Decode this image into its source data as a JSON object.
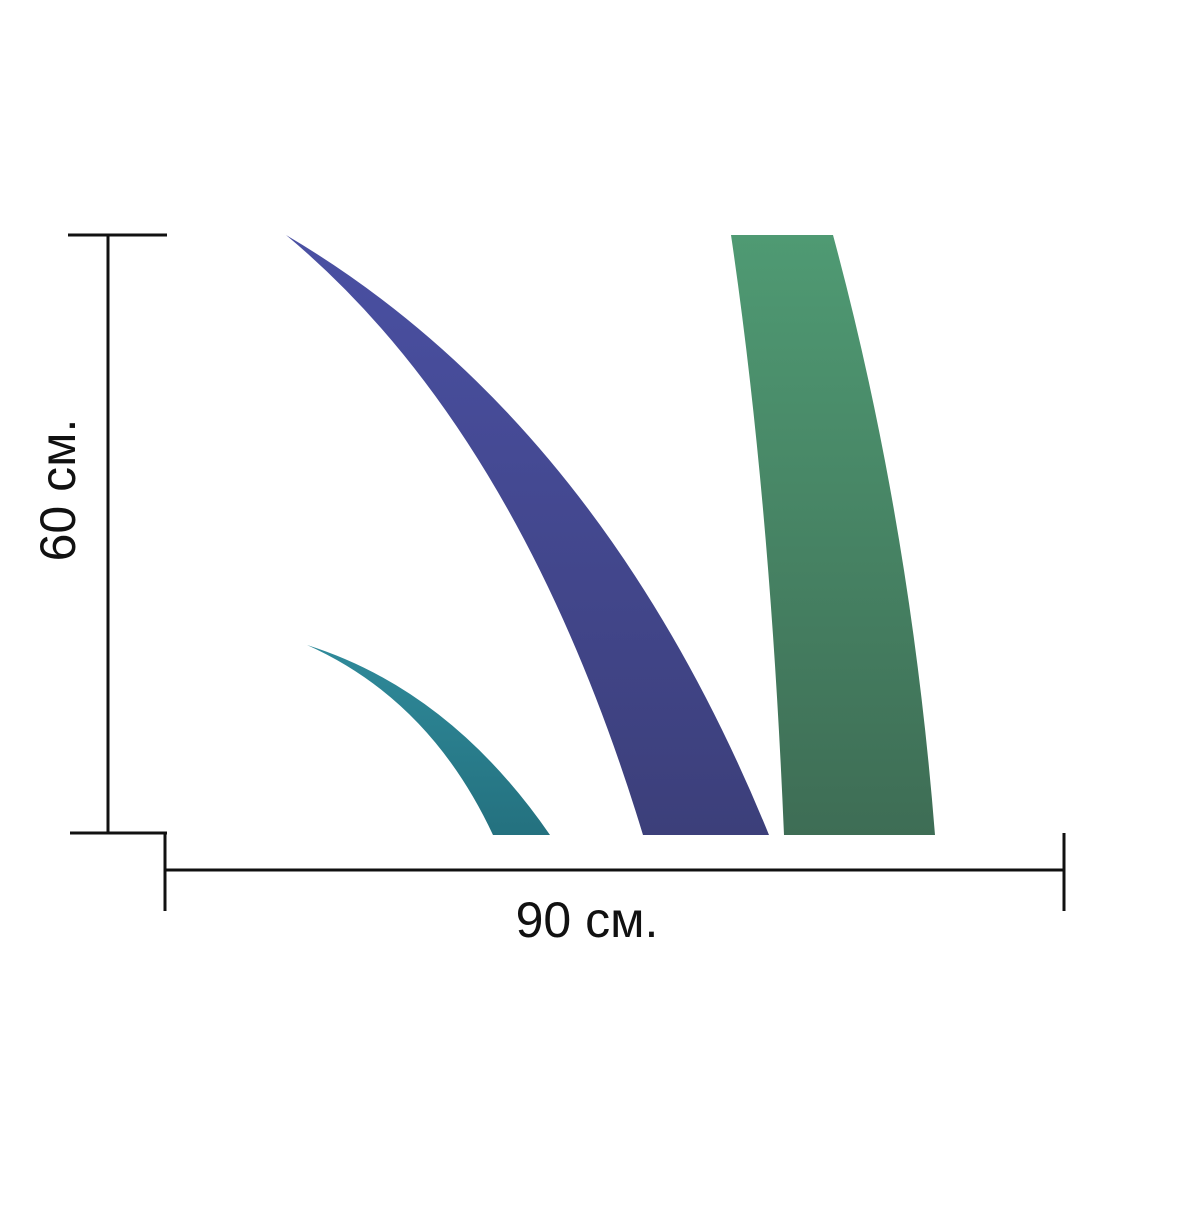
{
  "dimensions": {
    "width_label": "90 см.",
    "height_label": "60 см."
  },
  "colors": {
    "dimension_line": "#111111",
    "small_blade_top": "#2f8a9a",
    "small_blade_bottom": "#24717f",
    "middle_blade_top": "#4a50a3",
    "middle_blade_bottom": "#3c3f7a",
    "right_blade_top": "#4f9a73",
    "right_blade_bottom": "#3e6d55"
  },
  "artwork": {
    "elements": [
      "small-teal-blade",
      "middle-indigo-blade",
      "right-green-blade"
    ]
  }
}
